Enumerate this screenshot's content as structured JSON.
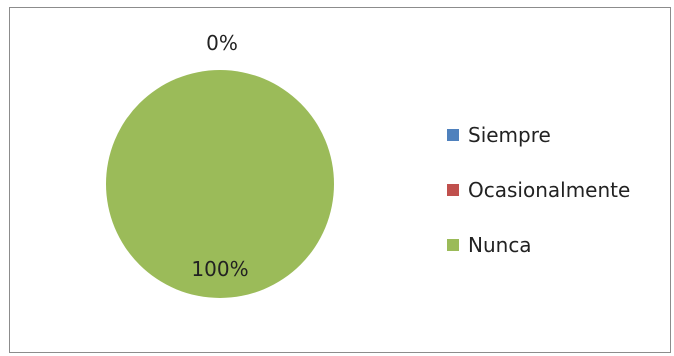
{
  "chart_data": {
    "type": "pie",
    "categories": [
      "Siempre",
      "Ocasionalmente",
      "Nunca"
    ],
    "values": [
      0,
      0,
      100
    ],
    "data_labels": [
      "0%",
      "0%",
      "100%"
    ],
    "colors": [
      "#4f81bd",
      "#c0504d",
      "#9bbb59"
    ],
    "legend_position": "right",
    "title": ""
  },
  "legend": {
    "items": [
      {
        "label": "Siempre",
        "color": "#4f81bd"
      },
      {
        "label": "Ocasionalmente",
        "color": "#c0504d"
      },
      {
        "label": "Nunca",
        "color": "#9bbb59"
      }
    ]
  },
  "labels": {
    "zero_label": "0%",
    "full_label": "100%"
  }
}
